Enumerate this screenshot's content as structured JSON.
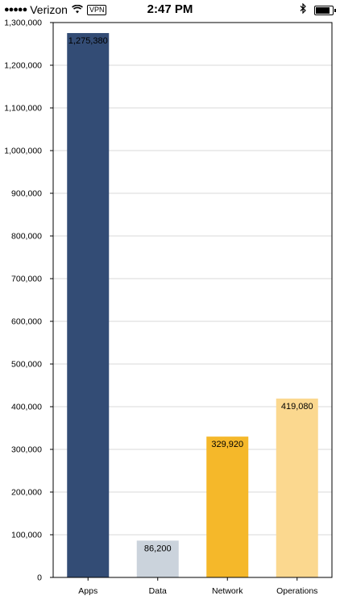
{
  "status_bar": {
    "signal_dots": "●●●●●",
    "carrier": "Verizon",
    "vpn": "VPN",
    "time": "2:47 PM",
    "battery_level": 0.85
  },
  "chart_data": {
    "type": "bar",
    "categories": [
      "Apps",
      "Data",
      "Network",
      "Operations"
    ],
    "values": [
      1275380,
      86200,
      329920,
      419080
    ],
    "value_labels": [
      "1,275,380",
      "86,200",
      "329,920",
      "419,080"
    ],
    "bar_colors": [
      "#334c75",
      "#cbd3dc",
      "#f5b82a",
      "#fbd88f"
    ],
    "ylim": [
      0,
      1300000
    ],
    "yticks": [
      0,
      100000,
      200000,
      300000,
      400000,
      500000,
      600000,
      700000,
      800000,
      900000,
      1000000,
      1100000,
      1200000,
      1300000
    ],
    "ytick_labels": [
      "0",
      "100,000",
      "200,000",
      "300,000",
      "400,000",
      "500,000",
      "600,000",
      "700,000",
      "800,000",
      "900,000",
      "1,000,000",
      "1,100,000",
      "1,200,000",
      "1,300,000"
    ],
    "grid": true,
    "title": "",
    "xlabel": "",
    "ylabel": ""
  }
}
